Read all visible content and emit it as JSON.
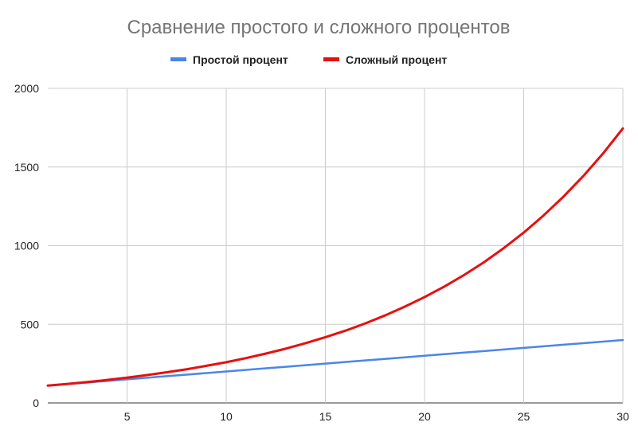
{
  "chart_data": {
    "type": "line",
    "title": "Сравнение простого и сложного процентов",
    "xlabel": "",
    "ylabel": "",
    "xlim": [
      1,
      30
    ],
    "ylim": [
      0,
      2000
    ],
    "x_ticks": [
      "5",
      "10",
      "15",
      "20",
      "25",
      "30"
    ],
    "y_ticks": [
      "0",
      "500",
      "1000",
      "1500",
      "2000"
    ],
    "grid": true,
    "legend_position": "top",
    "x": [
      1,
      2,
      3,
      4,
      5,
      6,
      7,
      8,
      9,
      10,
      11,
      12,
      13,
      14,
      15,
      16,
      17,
      18,
      19,
      20,
      21,
      22,
      23,
      24,
      25,
      26,
      27,
      28,
      29,
      30
    ],
    "series": [
      {
        "name": "Простой процент",
        "color": "#4a86e8",
        "values": [
          110,
          120,
          130,
          140,
          150,
          160,
          170,
          180,
          190,
          200,
          210,
          220,
          230,
          240,
          250,
          260,
          270,
          280,
          290,
          300,
          310,
          320,
          330,
          340,
          350,
          360,
          370,
          380,
          390,
          400
        ]
      },
      {
        "name": "Сложный процент",
        "color": "#e61010",
        "values": [
          110,
          121,
          133,
          146,
          161,
          177,
          195,
          214,
          236,
          259,
          285,
          314,
          345,
          380,
          418,
          459,
          505,
          556,
          612,
          673,
          740,
          814,
          895,
          985,
          1083,
          1192,
          1311,
          1442,
          1586,
          1745
        ]
      }
    ]
  }
}
